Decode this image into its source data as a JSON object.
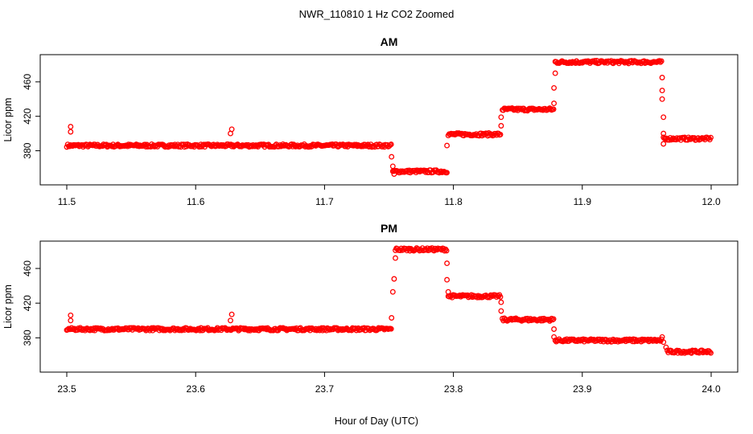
{
  "page_title": "NWR_110810  1 Hz CO2 Zoomed",
  "shared_xlabel": "Hour of Day (UTC)",
  "colors": {
    "points": "#ff0000",
    "axes": "#000000",
    "background": "#ffffff"
  },
  "chart_data": [
    {
      "type": "scatter",
      "title": "AM",
      "ylabel": "Licor ppm",
      "xlabel": "",
      "xlim": [
        11.5,
        12.0
      ],
      "ylim": [
        346,
        486
      ],
      "grid": false,
      "legend": "none",
      "marker": "open-circle",
      "xticks": [
        "11.5",
        "11.6",
        "11.7",
        "11.8",
        "11.9",
        "12.0"
      ],
      "yticks": [
        "380",
        "420",
        "460"
      ],
      "segments": [
        {
          "x": [
            11.5,
            11.752
          ],
          "y": 386
        },
        {
          "x": [
            11.753,
            11.795
          ],
          "y": 356
        },
        {
          "x": [
            11.796,
            11.837
          ],
          "y": 399
        },
        {
          "x": [
            11.838,
            11.878
          ],
          "y": 428
        },
        {
          "x": [
            11.879,
            11.962
          ],
          "y": 483
        },
        {
          "x": [
            11.963,
            12.0
          ],
          "y": 394
        }
      ],
      "spikes": [
        {
          "x": 11.503,
          "y": 402
        },
        {
          "x": 11.503,
          "y": 408
        },
        {
          "x": 11.627,
          "y": 400
        },
        {
          "x": 11.628,
          "y": 405
        },
        {
          "x": 11.752,
          "y": 373
        },
        {
          "x": 11.753,
          "y": 362
        },
        {
          "x": 11.754,
          "y": 353
        },
        {
          "x": 11.795,
          "y": 386
        },
        {
          "x": 11.837,
          "y": 409
        },
        {
          "x": 11.837,
          "y": 419
        },
        {
          "x": 11.878,
          "y": 435
        },
        {
          "x": 11.878,
          "y": 453
        },
        {
          "x": 11.879,
          "y": 470
        },
        {
          "x": 11.962,
          "y": 465
        },
        {
          "x": 11.962,
          "y": 450
        },
        {
          "x": 11.962,
          "y": 440
        },
        {
          "x": 11.963,
          "y": 419
        },
        {
          "x": 11.963,
          "y": 400
        },
        {
          "x": 11.963,
          "y": 388
        }
      ]
    },
    {
      "type": "scatter",
      "title": "PM",
      "ylabel": "Licor ppm",
      "xlabel": "",
      "xlim": [
        23.5,
        24.0
      ],
      "ylim": [
        346,
        486
      ],
      "grid": false,
      "legend": "none",
      "marker": "open-circle",
      "xticks": [
        "23.5",
        "23.6",
        "23.7",
        "23.8",
        "23.9",
        "24.0"
      ],
      "yticks": [
        "380",
        "420",
        "460"
      ],
      "segments": [
        {
          "x": [
            23.5,
            23.752
          ],
          "y": 390
        },
        {
          "x": [
            23.755,
            23.795
          ],
          "y": 482
        },
        {
          "x": [
            23.796,
            23.837
          ],
          "y": 428
        },
        {
          "x": [
            23.838,
            23.878
          ],
          "y": 401
        },
        {
          "x": [
            23.879,
            23.962
          ],
          "y": 377
        },
        {
          "x": [
            23.966,
            24.0
          ],
          "y": 364
        }
      ],
      "spikes": [
        {
          "x": 23.503,
          "y": 400
        },
        {
          "x": 23.503,
          "y": 406
        },
        {
          "x": 23.627,
          "y": 400
        },
        {
          "x": 23.628,
          "y": 407
        },
        {
          "x": 23.752,
          "y": 403
        },
        {
          "x": 23.753,
          "y": 433
        },
        {
          "x": 23.754,
          "y": 448
        },
        {
          "x": 23.755,
          "y": 472
        },
        {
          "x": 23.795,
          "y": 466
        },
        {
          "x": 23.795,
          "y": 447
        },
        {
          "x": 23.796,
          "y": 433
        },
        {
          "x": 23.837,
          "y": 421
        },
        {
          "x": 23.837,
          "y": 411
        },
        {
          "x": 23.878,
          "y": 390
        },
        {
          "x": 23.878,
          "y": 381
        },
        {
          "x": 23.962,
          "y": 381
        },
        {
          "x": 23.963,
          "y": 375
        },
        {
          "x": 23.965,
          "y": 369
        }
      ]
    }
  ]
}
